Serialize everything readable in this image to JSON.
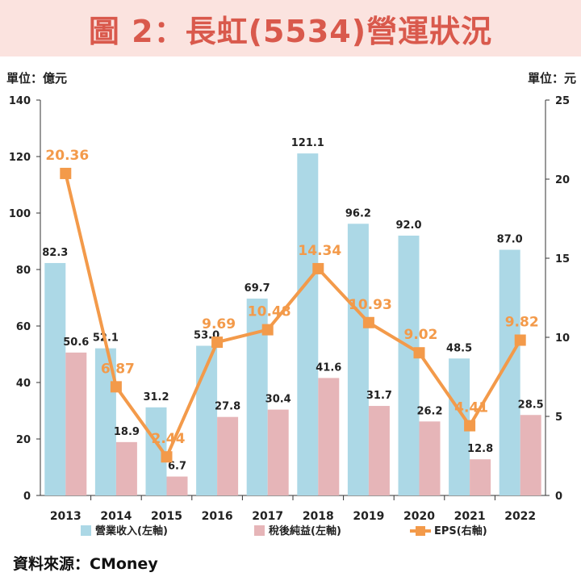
{
  "title": "圖 2：長虹(5534)營運狀況",
  "source_note": "資料來源：CMoney",
  "chart_data": {
    "type": "bar",
    "categories": [
      "2013",
      "2014",
      "2015",
      "2016",
      "2017",
      "2018",
      "2019",
      "2020",
      "2021",
      "2022"
    ],
    "series": [
      {
        "name": "營業收入(左軸)",
        "axis": "left",
        "kind": "bar",
        "color": "#acd8e6",
        "values": [
          82.3,
          52.1,
          31.2,
          53.0,
          69.7,
          121.1,
          96.2,
          92.0,
          48.5,
          87.0
        ],
        "labels": [
          "82.3",
          "52.1",
          "31.2",
          "53.0",
          "69.7",
          "121.1",
          "96.2",
          "92.0",
          "48.5",
          "87.0"
        ]
      },
      {
        "name": "稅後純益(左軸)",
        "axis": "left",
        "kind": "bar",
        "color": "#e6b5b8",
        "values": [
          50.6,
          18.9,
          6.7,
          27.8,
          30.4,
          41.6,
          31.7,
          26.2,
          12.8,
          28.5
        ],
        "labels": [
          "50.6",
          "18.9",
          "6.7",
          "27.8",
          "30.4",
          "41.6",
          "31.7",
          "26.2",
          "12.8",
          "28.5"
        ]
      },
      {
        "name": "EPS(右軸)",
        "axis": "right",
        "kind": "line",
        "color": "#f39a4a",
        "values": [
          20.36,
          6.87,
          2.44,
          9.69,
          10.48,
          14.34,
          10.93,
          9.02,
          4.41,
          9.82
        ],
        "labels": [
          "20.36",
          "6.87",
          "2.44",
          "9.69",
          "10.48",
          "14.34",
          "10.93",
          "9.02",
          "4.41",
          "9.82"
        ]
      }
    ],
    "y_left": {
      "unit_label": "單位：億元",
      "min": 0,
      "max": 140,
      "ticks": [
        "0",
        "20",
        "40",
        "60",
        "80",
        "100",
        "120",
        "140"
      ]
    },
    "y_right": {
      "unit_label": "單位：元",
      "min": 0,
      "max": 25,
      "ticks": [
        "0",
        "5",
        "10",
        "15",
        "20",
        "25"
      ]
    },
    "grid": false,
    "legend_position": "bottom"
  }
}
